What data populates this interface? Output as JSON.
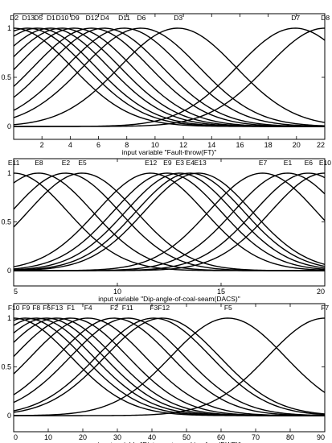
{
  "chart_data": [
    {
      "type": "line",
      "xlabel": "input variable \"Fault-throw(FT)\"",
      "xlim": [
        0,
        22
      ],
      "ylim": [
        0,
        1
      ],
      "xticks": [
        2,
        4,
        6,
        8,
        10,
        12,
        14,
        16,
        18,
        20,
        22
      ],
      "yticks": [
        0,
        0.5,
        1
      ],
      "series": [
        {
          "name": "D2",
          "mean": 0.0,
          "sigma": 4.1
        },
        {
          "name": "D13",
          "mean": 1.0,
          "sigma": 4.1
        },
        {
          "name": "D5",
          "mean": 1.7,
          "sigma": 4.1
        },
        {
          "name": "D1",
          "mean": 2.6,
          "sigma": 4.1
        },
        {
          "name": "D10",
          "mean": 3.4,
          "sigma": 4.1
        },
        {
          "name": "D9",
          "mean": 4.3,
          "sigma": 4.1
        },
        {
          "name": "D12",
          "mean": 5.5,
          "sigma": 4.1
        },
        {
          "name": "D4",
          "mean": 6.4,
          "sigma": 4.1
        },
        {
          "name": "D11",
          "mean": 7.8,
          "sigma": 4.1
        },
        {
          "name": "D6",
          "mean": 9.0,
          "sigma": 4.1
        },
        {
          "name": "D3",
          "mean": 11.6,
          "sigma": 4.1
        },
        {
          "name": "D7",
          "mean": 19.9,
          "sigma": 4.1
        },
        {
          "name": "D8",
          "mean": 22.0,
          "sigma": 4.1
        }
      ]
    },
    {
      "type": "line",
      "xlabel": "input variable \"Dip-angle-of-coal-seam(DACS)\"",
      "xlim": [
        5,
        20
      ],
      "ylim": [
        0,
        1
      ],
      "xticks": [
        5,
        10,
        15,
        20
      ],
      "yticks": [
        0,
        0.5,
        1
      ],
      "series": [
        {
          "name": "E11",
          "mean": 5.0,
          "sigma": 2.6
        },
        {
          "name": "E8",
          "mean": 6.2,
          "sigma": 2.6
        },
        {
          "name": "E2",
          "mean": 7.5,
          "sigma": 2.6
        },
        {
          "name": "E5",
          "mean": 8.3,
          "sigma": 2.6
        },
        {
          "name": "E12",
          "mean": 11.6,
          "sigma": 2.6
        },
        {
          "name": "E9",
          "mean": 12.4,
          "sigma": 2.6
        },
        {
          "name": "E3",
          "mean": 13.0,
          "sigma": 2.6
        },
        {
          "name": "E4",
          "mean": 13.5,
          "sigma": 2.6
        },
        {
          "name": "E13",
          "mean": 13.9,
          "sigma": 2.6
        },
        {
          "name": "E7",
          "mean": 17.0,
          "sigma": 2.6
        },
        {
          "name": "E1",
          "mean": 18.2,
          "sigma": 2.6
        },
        {
          "name": "E6",
          "mean": 19.2,
          "sigma": 2.6
        },
        {
          "name": "E10",
          "mean": 20.0,
          "sigma": 2.6
        }
      ]
    },
    {
      "type": "line",
      "xlabel": "input variable \"Distance-to-working-face(DWF)\"",
      "xlim": [
        0,
        90
      ],
      "ylim": [
        0,
        1
      ],
      "xticks": [
        0,
        10,
        20,
        30,
        40,
        50,
        60,
        70,
        80,
        90
      ],
      "yticks": [
        0,
        0.5,
        1
      ],
      "series": [
        {
          "name": "F10",
          "mean": 0.0,
          "sigma": 16.5
        },
        {
          "name": "F9",
          "mean": 3.5,
          "sigma": 16.5
        },
        {
          "name": "F8",
          "mean": 6.5,
          "sigma": 16.5
        },
        {
          "name": "F6",
          "mean": 9.5,
          "sigma": 16.5
        },
        {
          "name": "F13",
          "mean": 12.5,
          "sigma": 16.5
        },
        {
          "name": "F1",
          "mean": 16.5,
          "sigma": 16.5
        },
        {
          "name": "F4",
          "mean": 21.5,
          "sigma": 16.5
        },
        {
          "name": "F2",
          "mean": 29.0,
          "sigma": 16.5
        },
        {
          "name": "F11",
          "mean": 33.0,
          "sigma": 16.5
        },
        {
          "name": "F3",
          "mean": 40.5,
          "sigma": 16.5
        },
        {
          "name": "F12",
          "mean": 43.0,
          "sigma": 16.5
        },
        {
          "name": "F5",
          "mean": 62.0,
          "sigma": 16.5
        },
        {
          "name": "F7",
          "mean": 90.0,
          "sigma": 16.5
        }
      ]
    }
  ]
}
